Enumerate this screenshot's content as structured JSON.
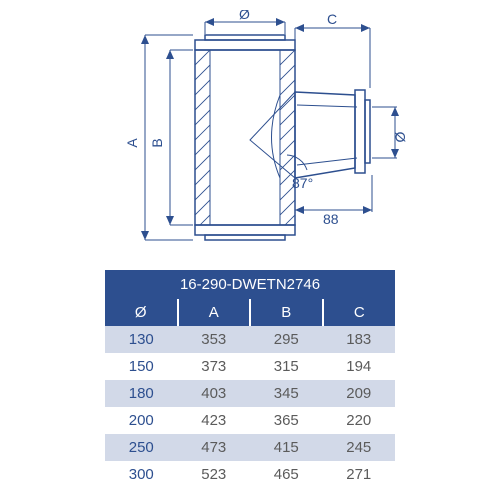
{
  "diagram": {
    "angle_label": "87°",
    "offset_label": "88",
    "dims": {
      "A": "A",
      "B": "B",
      "C": "C",
      "diam_top": "Ø",
      "diam_side": "Ø"
    },
    "colors": {
      "line": "#2d4f8f",
      "bg": "#ffffff"
    }
  },
  "table": {
    "title": "16-290-DWETN2746",
    "columns": [
      "Ø",
      "A",
      "B",
      "C"
    ],
    "rows": [
      {
        "diam": "130",
        "A": "353",
        "B": "295",
        "C": "183"
      },
      {
        "diam": "150",
        "A": "373",
        "B": "315",
        "C": "194"
      },
      {
        "diam": "180",
        "A": "403",
        "B": "345",
        "C": "209"
      },
      {
        "diam": "200",
        "A": "423",
        "B": "365",
        "C": "220"
      },
      {
        "diam": "250",
        "A": "473",
        "B": "415",
        "C": "245"
      },
      {
        "diam": "300",
        "A": "523",
        "B": "465",
        "C": "271"
      }
    ],
    "colors": {
      "header_bg": "#2d4f8f",
      "header_fg": "#ffffff",
      "row_even_bg": "#d2d9e8",
      "row_odd_bg": "#ffffff",
      "diam_fg": "#2d4f8f",
      "val_fg": "#5b5b5b"
    }
  }
}
